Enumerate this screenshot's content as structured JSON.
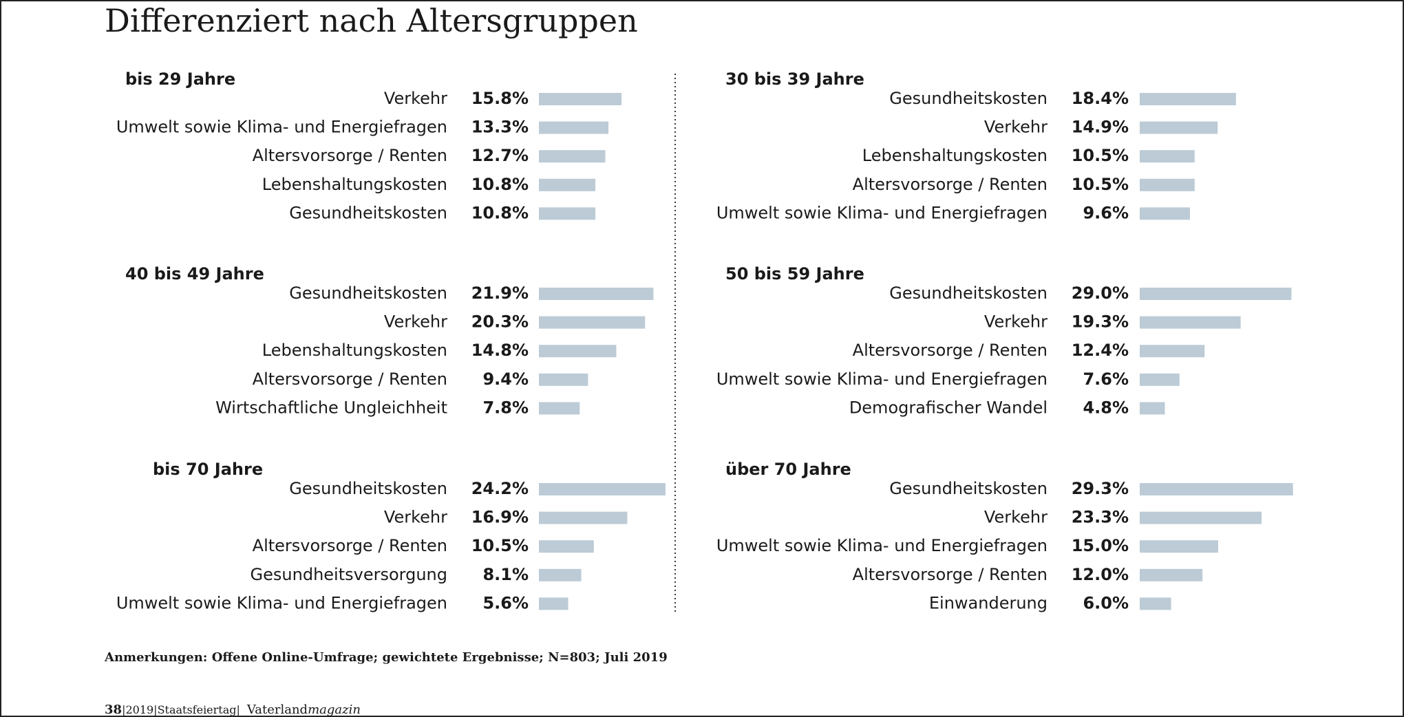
{
  "title": "Differenziert nach Altersgruppen",
  "chart_data": [
    {
      "type": "bar",
      "title": "bis 29 Jahre",
      "color": "#bccbd6",
      "categories": [
        "Verkehr",
        "Umwelt sowie Klima- und Energiefragen",
        "Altersvorsorge / Renten",
        "Lebenshaltungskosten",
        "Gesundheitskosten"
      ],
      "values": [
        15.8,
        13.3,
        12.7,
        10.8,
        10.8
      ],
      "value_labels": [
        "15.8%",
        "13.3%",
        "12.7%",
        "10.8%",
        "10.8%"
      ]
    },
    {
      "type": "bar",
      "title": "30 bis 39 Jahre",
      "color": "#bccbd6",
      "categories": [
        "Gesundheitskosten",
        "Verkehr",
        "Lebenshaltungskosten",
        "Altersvorsorge / Renten",
        "Umwelt sowie Klima- und Energiefragen"
      ],
      "values": [
        18.4,
        14.9,
        10.5,
        10.5,
        9.6
      ],
      "value_labels": [
        "18.4%",
        "14.9%",
        "10.5%",
        "10.5%",
        "9.6%"
      ]
    },
    {
      "type": "bar",
      "title": "40 bis 49 Jahre",
      "color": "#bccbd6",
      "categories": [
        "Gesundheitskosten",
        "Verkehr",
        "Lebenshaltungskosten",
        "Altersvorsorge / Renten",
        "Wirtschaftliche Ungleichheit"
      ],
      "values": [
        21.9,
        20.3,
        14.8,
        9.4,
        7.8
      ],
      "value_labels": [
        "21.9%",
        "20.3%",
        "14.8%",
        "9.4%",
        "7.8%"
      ]
    },
    {
      "type": "bar",
      "title": "50 bis 59 Jahre",
      "color": "#bccbd6",
      "categories": [
        "Gesundheitskosten",
        "Verkehr",
        "Altersvorsorge / Renten",
        "Umwelt sowie Klima- und Energiefragen",
        "Demografischer Wandel"
      ],
      "values": [
        29.0,
        19.3,
        12.4,
        7.6,
        4.8
      ],
      "value_labels": [
        "29.0%",
        "19.3%",
        "12.4%",
        "7.6%",
        "4.8%"
      ]
    },
    {
      "type": "bar",
      "title": "bis 70 Jahre",
      "color": "#bccbd6",
      "categories": [
        "Gesundheitskosten",
        "Verkehr",
        "Altersvorsorge / Renten",
        "Gesundheitsversorgung",
        "Umwelt sowie Klima- und Energiefragen"
      ],
      "values": [
        24.2,
        16.9,
        10.5,
        8.1,
        5.6
      ],
      "value_labels": [
        "24.2%",
        "16.9%",
        "10.5%",
        "8.1%",
        "5.6%"
      ]
    },
    {
      "type": "bar",
      "title": "über 70 Jahre",
      "color": "#bccbd6",
      "categories": [
        "Gesundheitskosten",
        "Verkehr",
        "Umwelt sowie Klima- und Energiefragen",
        "Altersvorsorge / Renten",
        "Einwanderung"
      ],
      "values": [
        29.3,
        23.3,
        15.0,
        12.0,
        6.0
      ],
      "value_labels": [
        "29.3%",
        "23.3%",
        "15.0%",
        "12.0%",
        "6.0%"
      ]
    }
  ],
  "note": "Anmerkungen: Offene Online-Umfrage; gewichtete Ergebnisse; N=803; Juli 2019",
  "footer": {
    "page": "38",
    "issue": "|2019|Staatsfeiertag|",
    "brand": "Vaterland",
    "brand_suffix": "magazin"
  }
}
